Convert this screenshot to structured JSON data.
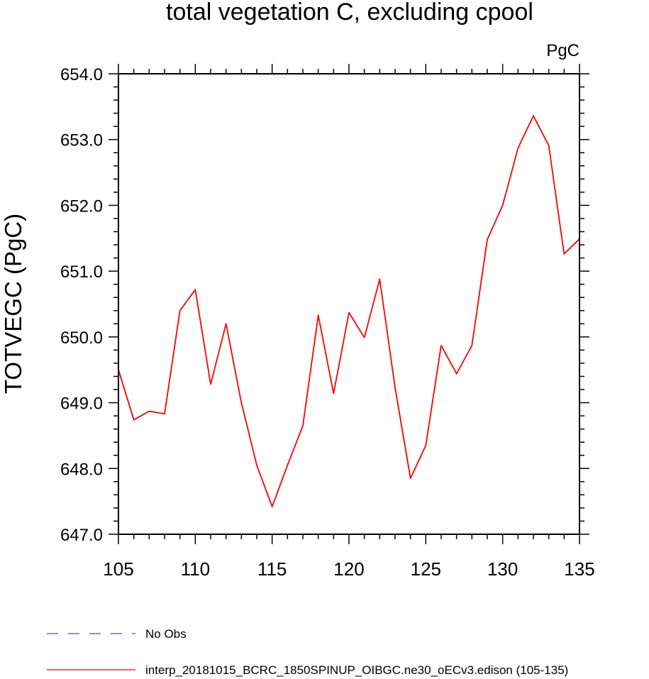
{
  "chart_data": {
    "type": "line",
    "title": "total vegetation C, excluding cpool",
    "units_label": "PgC",
    "ylabel": "TOTVEGC  (PgC)",
    "xlabel": "",
    "xlim": [
      105,
      135
    ],
    "ylim": [
      647.0,
      654.0
    ],
    "x_ticks": [
      105,
      110,
      115,
      120,
      125,
      130,
      135
    ],
    "x_tick_labels": [
      "105",
      "110",
      "115",
      "120",
      "125",
      "130",
      "135"
    ],
    "y_ticks": [
      647.0,
      648.0,
      649.0,
      650.0,
      651.0,
      652.0,
      653.0,
      654.0
    ],
    "y_tick_labels": [
      "647.0",
      "648.0",
      "649.0",
      "650.0",
      "651.0",
      "652.0",
      "653.0",
      "654.0"
    ],
    "series": [
      {
        "name": "interp_20181015_BCRC_1850SPINUP_OIBGC.ne30_oECv3.edison (105-135)",
        "color": "#ff0000",
        "style": "solid",
        "x": [
          105,
          106,
          107,
          108,
          109,
          110,
          111,
          112,
          113,
          114,
          115,
          116,
          117,
          118,
          119,
          120,
          121,
          122,
          123,
          124,
          125,
          126,
          127,
          128,
          129,
          130,
          131,
          132,
          133,
          134,
          135
        ],
        "values": [
          649.5,
          648.74,
          648.87,
          648.83,
          650.4,
          650.72,
          649.28,
          650.2,
          649.0,
          648.05,
          647.42,
          648.05,
          648.65,
          650.33,
          649.14,
          650.37,
          649.99,
          650.88,
          649.23,
          647.85,
          648.35,
          649.87,
          649.44,
          649.87,
          651.48,
          652.0,
          652.87,
          653.36,
          652.91,
          651.26,
          651.49
        ]
      }
    ],
    "legend": [
      {
        "label": "No Obs",
        "color": "#4a4adc",
        "style": "dashed"
      },
      {
        "label": "interp_20181015_BCRC_1850SPINUP_OIBGC.ne30_oECv3.edison (105-135)",
        "color": "#ff0000",
        "style": "solid"
      }
    ],
    "legend_position": "bottom-left",
    "grid": false
  }
}
